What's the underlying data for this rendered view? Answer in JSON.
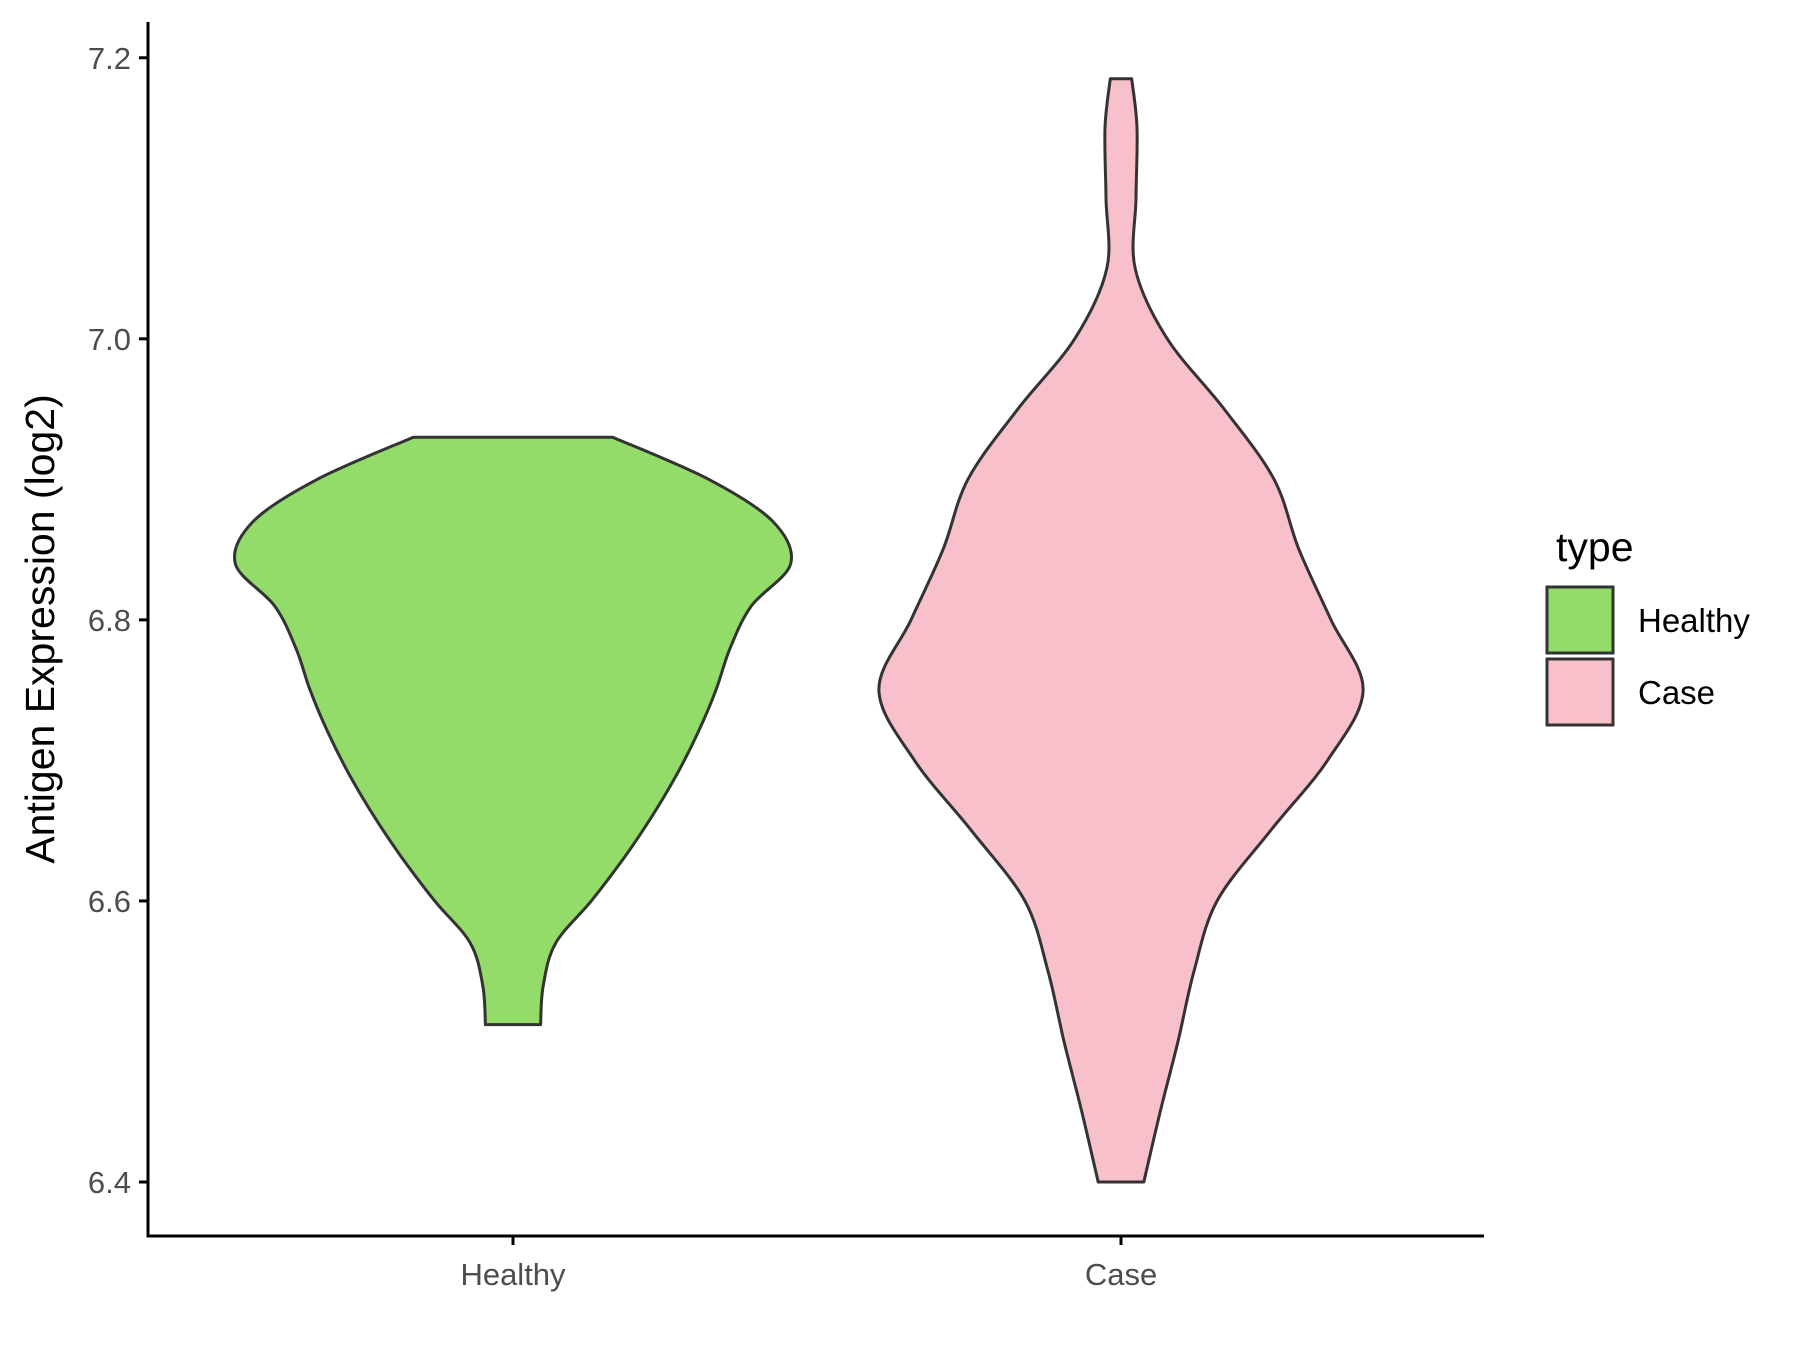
{
  "chart_data": {
    "type": "violin",
    "xlabel": "",
    "ylabel": "Antigen Expression (log2)",
    "categories": [
      "Healthy",
      "Case"
    ],
    "ylim": [
      6.36,
      7.225
    ],
    "yticks": [
      6.4,
      6.6,
      6.8,
      7.0,
      7.2
    ],
    "ytick_labels": [
      "6.4",
      "6.6",
      "6.8",
      "7.0",
      "7.2"
    ],
    "grid": false,
    "legend": {
      "title": "type",
      "position": "right",
      "entries": [
        {
          "label": "Healthy",
          "color": "#93dc6a"
        },
        {
          "label": "Case",
          "color": "#f7c0cb"
        }
      ]
    },
    "series": [
      {
        "category": "Healthy",
        "color": "#93dc6a",
        "min": 6.512,
        "max": 6.93,
        "profile": [
          [
            6.512,
            0.0775
          ],
          [
            6.54,
            0.085
          ],
          [
            6.57,
            0.12
          ],
          [
            6.6,
            0.22
          ],
          [
            6.63,
            0.31
          ],
          [
            6.66,
            0.39
          ],
          [
            6.69,
            0.46
          ],
          [
            6.72,
            0.52
          ],
          [
            6.75,
            0.57
          ],
          [
            6.78,
            0.61
          ],
          [
            6.81,
            0.67
          ],
          [
            6.84,
            0.78
          ],
          [
            6.87,
            0.73
          ],
          [
            6.9,
            0.55
          ],
          [
            6.93,
            0.28
          ]
        ]
      },
      {
        "category": "Case",
        "color": "#f7c0cb",
        "min": 6.4,
        "max": 7.185,
        "profile": [
          [
            6.4,
            0.064
          ],
          [
            6.45,
            0.11
          ],
          [
            6.5,
            0.16
          ],
          [
            6.55,
            0.205
          ],
          [
            6.6,
            0.27
          ],
          [
            6.65,
            0.42
          ],
          [
            6.7,
            0.58
          ],
          [
            6.75,
            0.68
          ],
          [
            6.8,
            0.59
          ],
          [
            6.85,
            0.5
          ],
          [
            6.9,
            0.43
          ],
          [
            6.95,
            0.29
          ],
          [
            7.0,
            0.13
          ],
          [
            7.05,
            0.04
          ],
          [
            7.1,
            0.042
          ],
          [
            7.15,
            0.045
          ],
          [
            7.185,
            0.03
          ]
        ]
      }
    ]
  }
}
